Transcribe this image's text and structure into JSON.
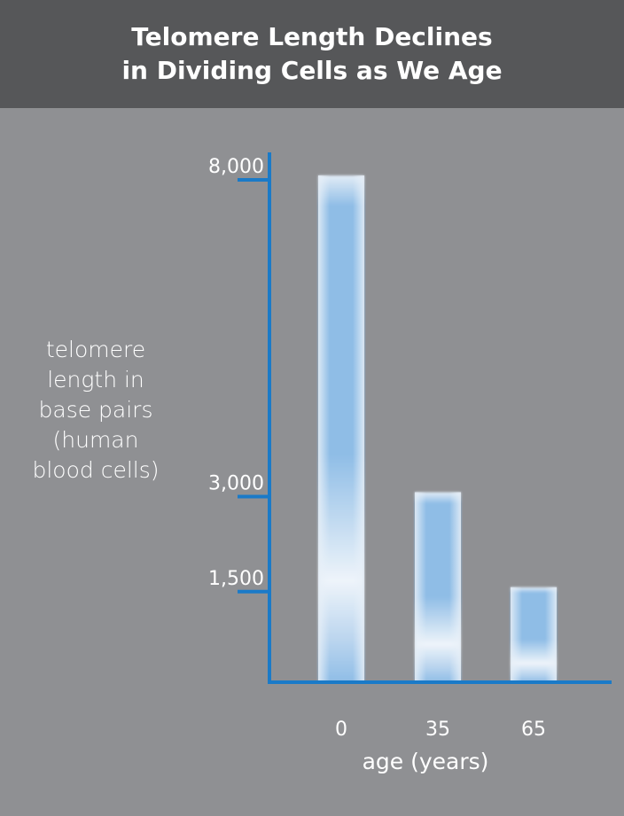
{
  "header": {
    "title_line1": "Telomere Length Declines",
    "title_line2": "in Dividing Cells as We Age"
  },
  "chart_data": {
    "type": "bar",
    "categories": [
      "0",
      "35",
      "65"
    ],
    "values": [
      8000,
      3000,
      1500
    ],
    "title": "Telomere Length Declines in Dividing Cells as We Age",
    "xlabel": "age (years)",
    "ylabel_lines": [
      "telomere",
      "length in",
      "base pairs",
      "(human",
      "blood cells)"
    ],
    "y_ticks": [
      {
        "value": 8000,
        "label": "8,000"
      },
      {
        "value": 3000,
        "label": "3,000"
      },
      {
        "value": 1500,
        "label": "1,500"
      }
    ],
    "ylim": [
      0,
      8000
    ],
    "grid": false,
    "colors": {
      "axis": "#1a7ac8",
      "bar_fill": "#dce8f4",
      "bar_glow": "#8fbde6",
      "bar_edge": "#c8dcef"
    }
  }
}
